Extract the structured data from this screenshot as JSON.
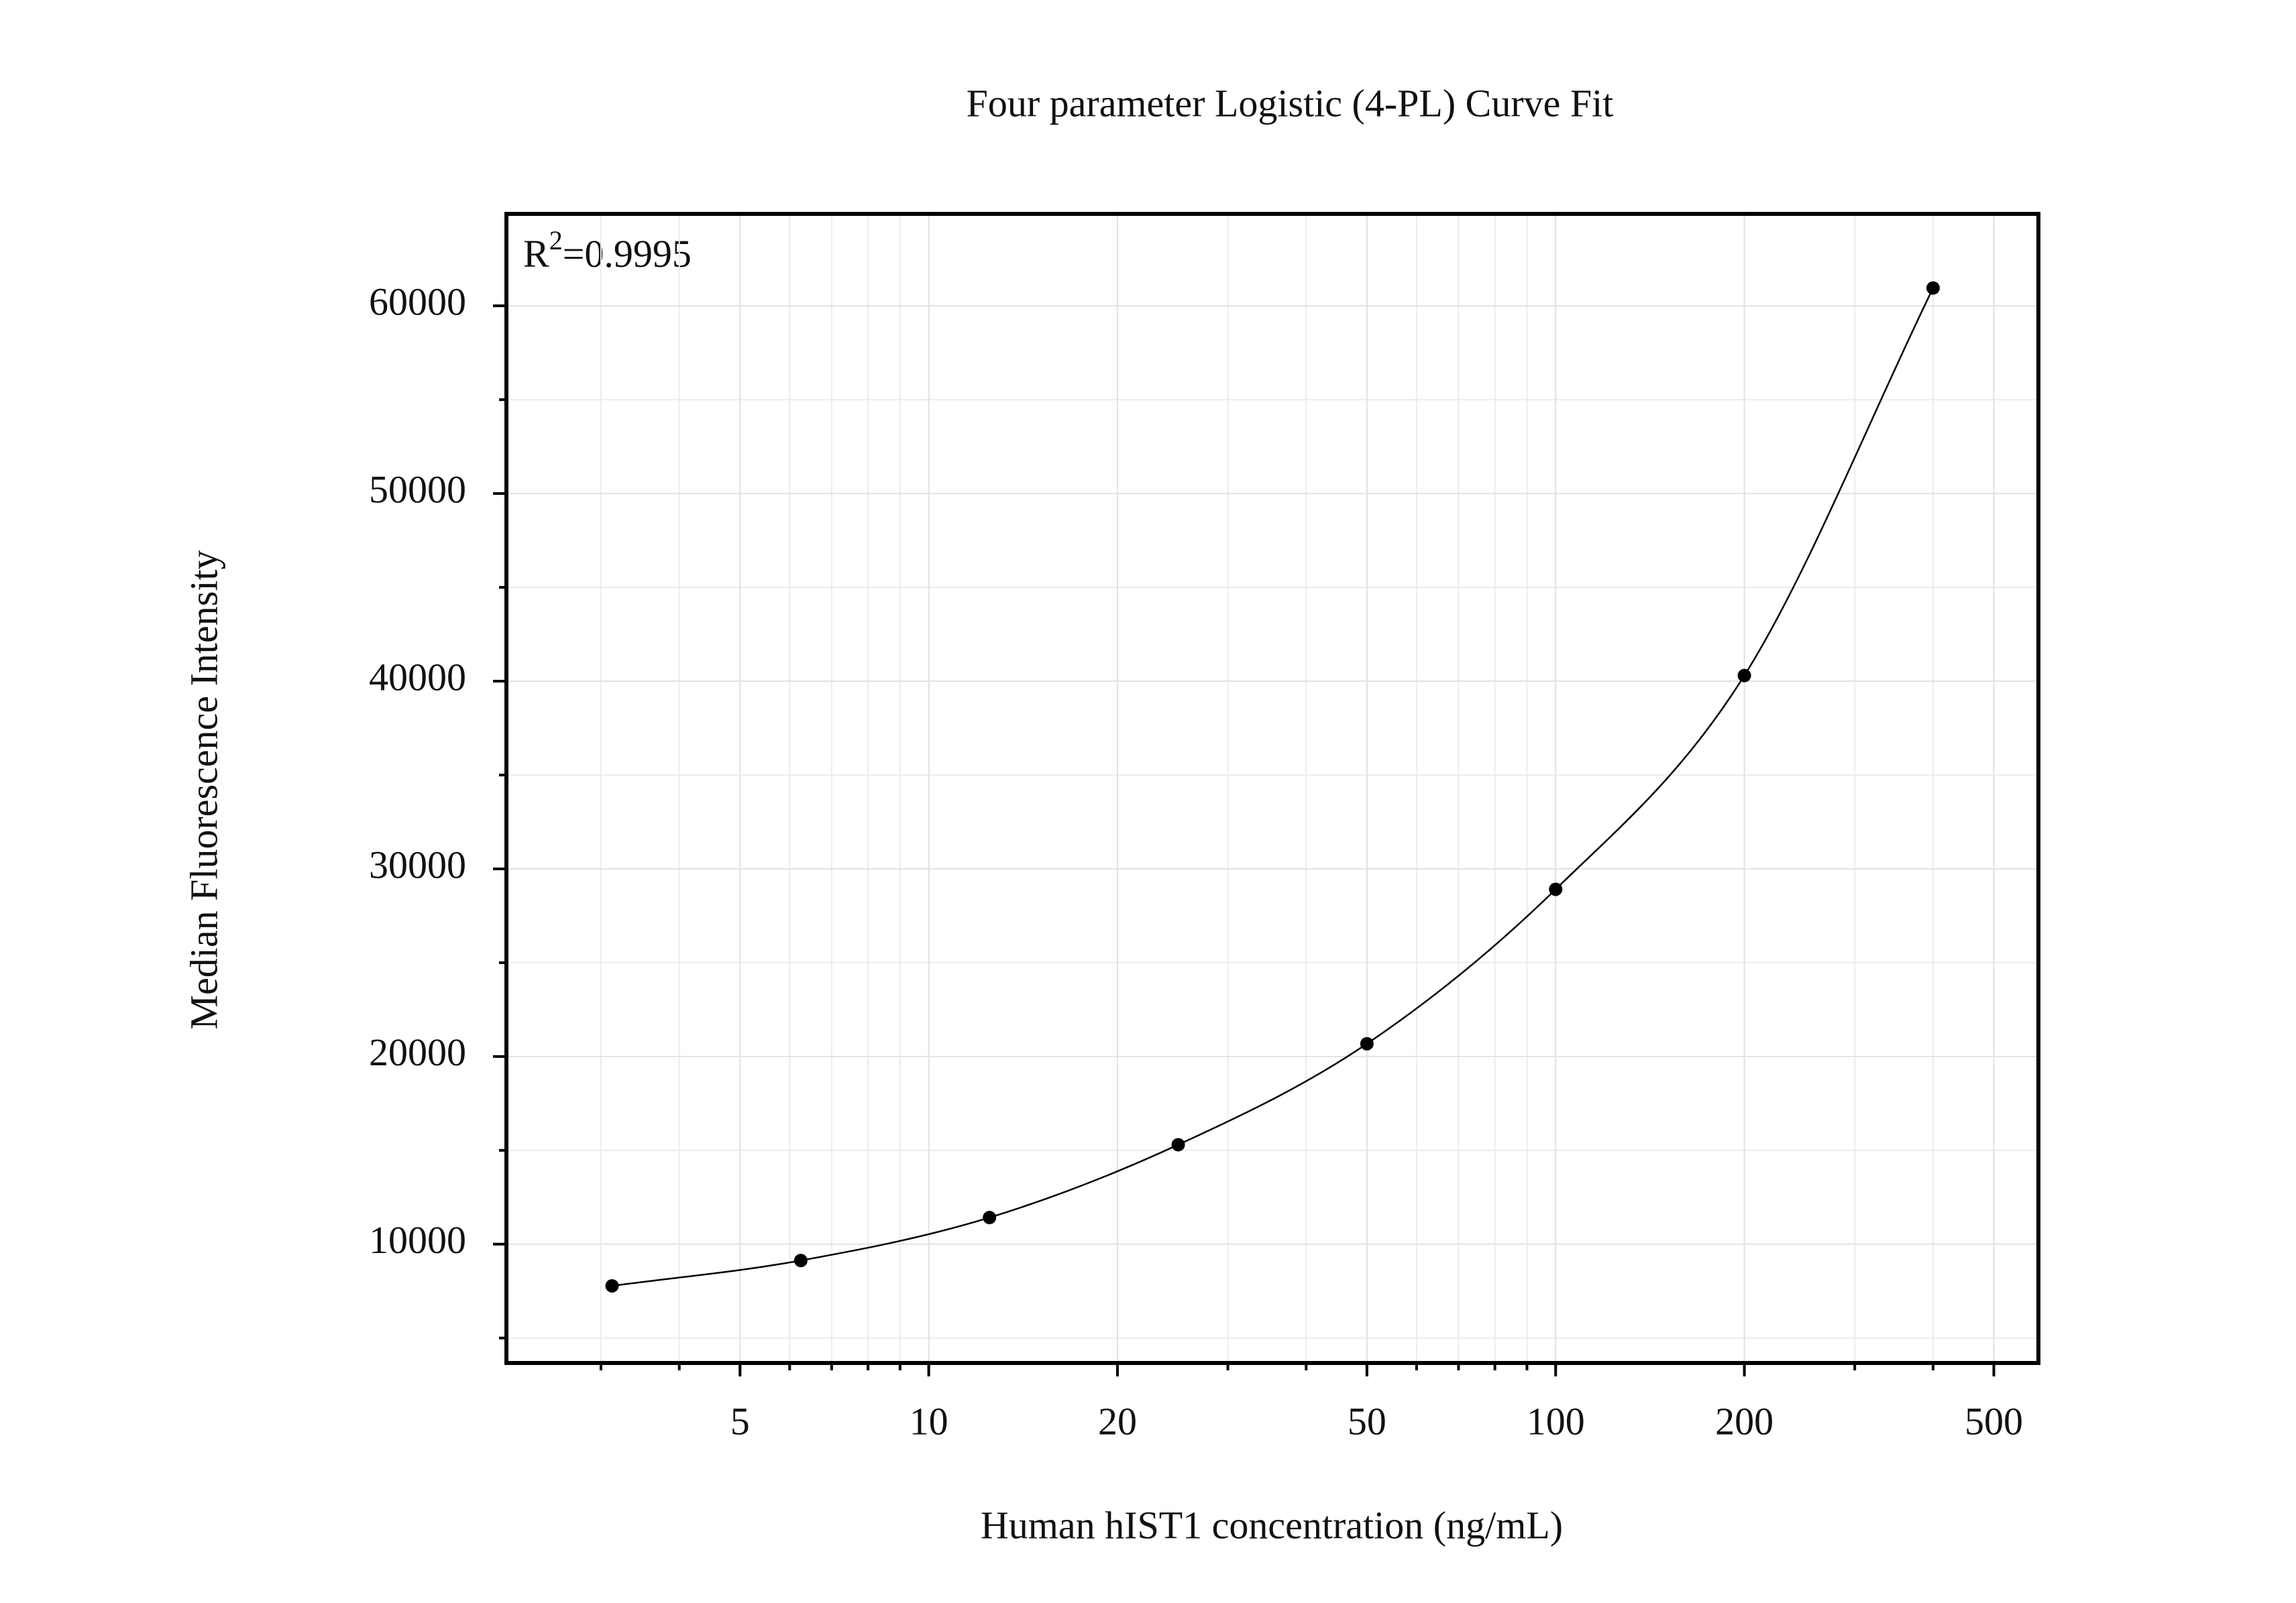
{
  "chart_data": {
    "type": "scatter",
    "title": "Four parameter Logistic (4-PL) Curve Fit",
    "x_label": "Human hIST1 concentration (ng/mL)",
    "y_label": "Median Fluorescence Intensity",
    "annotation_parts": [
      "R",
      "2",
      "=0.9995"
    ],
    "x_log": true,
    "grid": true,
    "color": "#000000",
    "fit_line": true,
    "x": [
      3.125,
      6.25,
      12.5,
      25,
      50,
      100,
      200,
      400
    ],
    "values": [
      7780,
      9130,
      11420,
      15300,
      20680,
      28910,
      40300,
      60950
    ],
    "xlim": [
      2.12,
      589
    ],
    "ylim": [
      3670,
      64900
    ],
    "xticks": [
      5,
      10,
      20,
      50,
      100,
      200,
      500
    ],
    "yticks": [
      10000,
      20000,
      30000,
      40000,
      50000,
      60000
    ]
  }
}
